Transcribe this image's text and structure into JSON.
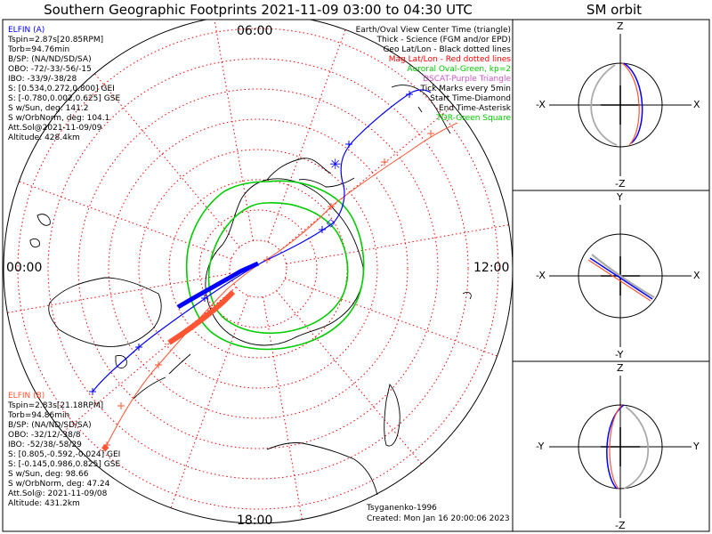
{
  "title": "Southern Geographic Footprints 2021-11-09 03:00 to 04:30 UTC",
  "sm_title": "SM orbit",
  "map": {
    "labels": {
      "top": "06:00",
      "left": "00:00",
      "right": "12:00",
      "bottom": "18:00"
    }
  },
  "elfin_a": {
    "name": "ELFIN (A)",
    "color": "#0000ff",
    "lines": [
      "Tspin=2.87s[20.85RPM]",
      "Torb=94.76min",
      "B/SP: (NA/ND/SD/SA)",
      "OBO: -72/-33/-56/-15",
      "IBO: -33/9/-38/28",
      "S: [0.534,0.272,0.800] GEI",
      "S: [-0.780,0.002,0.625] GSE",
      "S w/Sun, deg: 141.2",
      "S w/OrbNorm, deg: 104.1",
      "Att.Sol@2021-11-09/09",
      "Altitude: 428.4km"
    ]
  },
  "elfin_b": {
    "name": "ELFIN (B)",
    "color": "#ff5533",
    "lines": [
      "Tspin=2.83s[21.18RPM]",
      "Torb=94.86min",
      "B/SP: (NA/ND/SD/SA)",
      "OBO: -32/12/-38/8",
      "IBO: -52/38/-58/29",
      "S: [0.805,-0.592,-0.024] GEI",
      "S: [-0.145,0.986,0.825] GSE",
      "S w/Sun, deg: 98.66",
      "S w/OrbNorm, deg: 47.24",
      "Att.Sol@: 2021-11-09/08",
      "Altitude: 431.2km"
    ]
  },
  "legend": [
    {
      "text": "Earth/Oval View Center Time (triangle)",
      "color": "#000000"
    },
    {
      "text": "Thick - Science (FGM and/or EPD)",
      "color": "#000000"
    },
    {
      "text": "Geo Lat/Lon - Black dotted lines",
      "color": "#000000"
    },
    {
      "text": "Mag Lat/Lon - Red dotted lines",
      "color": "#ff0000"
    },
    {
      "text": "Auroral Oval-Green, kp=2",
      "color": "#00cc00"
    },
    {
      "text": "DSCAT-Purple Triangle",
      "color": "#cc55cc"
    },
    {
      "text": "Tick Marks every 5min",
      "color": "#000000"
    },
    {
      "text": "Start Time-Diamond",
      "color": "#000000"
    },
    {
      "text": "End Time-Asterisk",
      "color": "#000000"
    },
    {
      "text": "TDR-Green Square",
      "color": "#00cc00"
    }
  ],
  "footer": {
    "model": "Tsyganenko-1996",
    "created": "Created: Mon Jan 16 20:00:06 2023"
  },
  "sm_panels": [
    {
      "top": "Z",
      "bottom": "-Z",
      "left": "-X",
      "right": "X"
    },
    {
      "top": "Y",
      "bottom": "-Y",
      "left": "-X",
      "right": "X"
    },
    {
      "top": "Z",
      "bottom": "-Z",
      "left": "-Y",
      "right": "Y"
    }
  ],
  "colors": {
    "elfin_a": "#0000ff",
    "elfin_b": "#ff5533",
    "auroral_oval": "#00cc00",
    "mag_grid": "#ff0000",
    "earth_grey": "#aaaaaa"
  }
}
